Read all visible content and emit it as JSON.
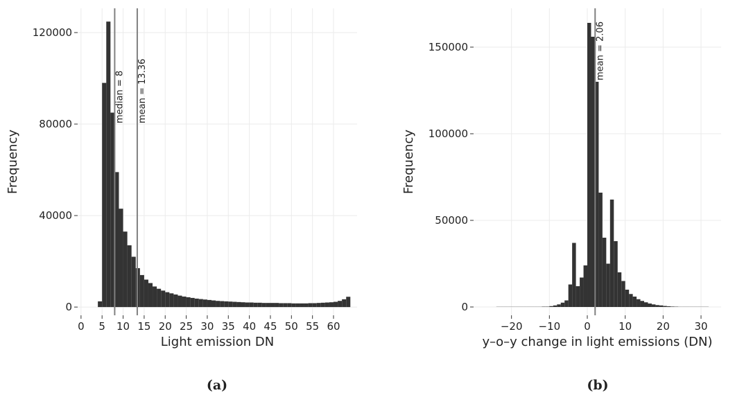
{
  "chart_data": [
    {
      "type": "histogram",
      "caption": "(a)",
      "xlabel": "Light emission DN",
      "ylabel": "Frequency",
      "bins": [
        0,
        1,
        2,
        3,
        4,
        5,
        6,
        7,
        8,
        9,
        10,
        11,
        12,
        13,
        14,
        15,
        16,
        17,
        18,
        19,
        20,
        21,
        22,
        23,
        24,
        25,
        26,
        27,
        28,
        29,
        30,
        31,
        32,
        33,
        34,
        35,
        36,
        37,
        38,
        39,
        40,
        41,
        42,
        43,
        44,
        45,
        46,
        47,
        48,
        49,
        50,
        51,
        52,
        53,
        54,
        55,
        56,
        57,
        58,
        59,
        60,
        61,
        62,
        63,
        64
      ],
      "counts": [
        0,
        0,
        0,
        0,
        2500,
        98000,
        124800,
        85000,
        59000,
        43000,
        33000,
        27000,
        22000,
        17000,
        14000,
        12000,
        10500,
        9000,
        8000,
        7200,
        6500,
        6000,
        5500,
        5000,
        4600,
        4300,
        4000,
        3700,
        3500,
        3300,
        3100,
        2900,
        2700,
        2600,
        2500,
        2400,
        2300,
        2200,
        2100,
        2000,
        2000,
        1900,
        1900,
        1800,
        1800,
        1800,
        1800,
        1700,
        1700,
        1700,
        1600,
        1600,
        1600,
        1600,
        1700,
        1700,
        1800,
        1900,
        2000,
        2100,
        2300,
        2700,
        3400,
        4500
      ],
      "color": "#333333",
      "xlim": [
        -0.8,
        65.6
      ],
      "ylim": [
        -3600,
        130600
      ],
      "xticks": [
        0,
        5,
        10,
        15,
        20,
        25,
        30,
        35,
        40,
        45,
        50,
        55,
        60
      ],
      "yticks": [
        0,
        40000,
        80000,
        120000
      ],
      "grid": true,
      "vlines": [
        {
          "x": 8,
          "label": "median = 8"
        },
        {
          "x": 13.36,
          "label": "mean = 13.36"
        }
      ],
      "vline_color": "#808080"
    },
    {
      "type": "histogram",
      "caption": "(b)",
      "xlabel": "y–o–y change in light emissions (DN)",
      "ylabel": "Frequency",
      "bins": [
        -24,
        -23,
        -22,
        -21,
        -20,
        -19,
        -18,
        -17,
        -16,
        -15,
        -14,
        -13,
        -12,
        -11,
        -10,
        -9,
        -8,
        -7,
        -6,
        -5,
        -4,
        -3,
        -2,
        -1,
        0,
        1,
        2,
        3,
        4,
        5,
        6,
        7,
        8,
        9,
        10,
        11,
        12,
        13,
        14,
        15,
        16,
        17,
        18,
        19,
        20,
        21,
        22,
        23,
        24,
        25,
        26,
        27,
        28,
        29,
        30,
        31,
        32
      ],
      "counts": [
        100,
        100,
        100,
        100,
        100,
        100,
        100,
        100,
        100,
        100,
        100,
        100,
        200,
        200,
        500,
        900,
        1500,
        2500,
        3800,
        13000,
        37000,
        12000,
        17000,
        24000,
        164000,
        156000,
        130000,
        66000,
        40000,
        25000,
        62000,
        38000,
        20000,
        15000,
        10000,
        7500,
        6000,
        4500,
        3500,
        2700,
        2000,
        1500,
        1100,
        900,
        600,
        400,
        250,
        180,
        100,
        100,
        100,
        100,
        100,
        100,
        100,
        100
      ],
      "color": "#333333",
      "xlim": [
        -30,
        35.3
      ],
      "ylim": [
        -4800,
        172400
      ],
      "xticks": [
        {
          "value": -20,
          "label": "−20"
        },
        {
          "value": -10,
          "label": "−10"
        },
        0,
        10,
        20,
        30
      ],
      "yticks": [
        0,
        50000,
        100000,
        150000
      ],
      "grid": true,
      "vlines": [
        {
          "x": 2.06,
          "label": "mean = 2.06"
        }
      ],
      "vline_color": "#808080"
    }
  ]
}
